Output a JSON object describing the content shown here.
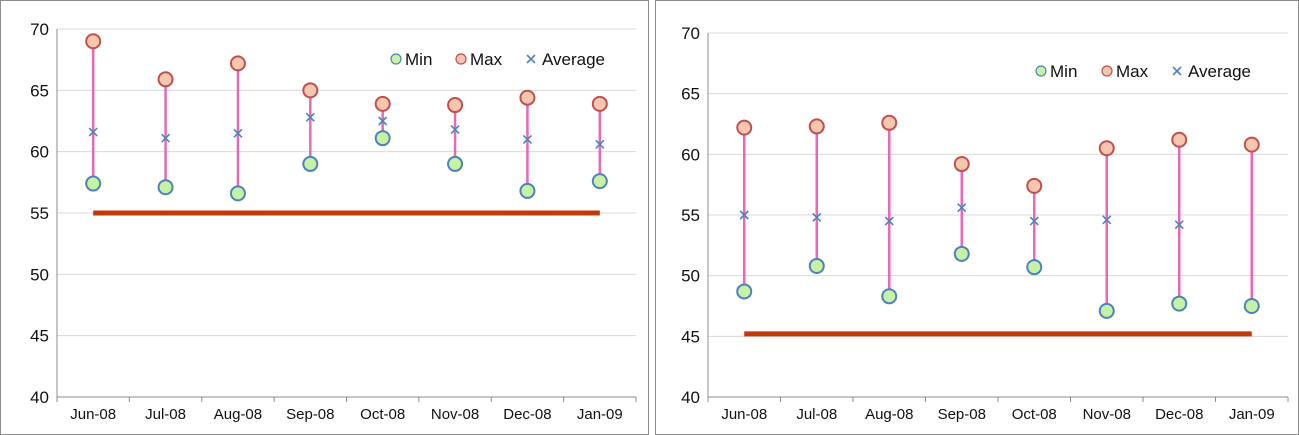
{
  "colors": {
    "min_fill": "#c6f2a6",
    "min_stroke": "#4f81bd",
    "max_fill": "#f6c7b0",
    "max_stroke": "#c0504d",
    "average_marker": "#4f81bd",
    "range_line": "#e868b8",
    "threshold_line": "#c0390b",
    "grid": "#d9d9d9",
    "axis": "#8c8c8c"
  },
  "chart_data": [
    {
      "type": "line",
      "title": "",
      "xlabel": "",
      "ylabel": "",
      "categories": [
        "Jun-08",
        "Jul-08",
        "Aug-08",
        "Sep-08",
        "Oct-08",
        "Nov-08",
        "Dec-08",
        "Jan-09"
      ],
      "ylim": [
        40,
        70
      ],
      "yticks": [
        40,
        45,
        50,
        55,
        60,
        65,
        70
      ],
      "grid": true,
      "legend_position": "top-right",
      "series": [
        {
          "name": "Min",
          "values": [
            57.4,
            57.1,
            56.6,
            59.0,
            61.1,
            59.0,
            56.8,
            57.6
          ]
        },
        {
          "name": "Max",
          "values": [
            69.0,
            65.9,
            67.2,
            65.0,
            63.9,
            63.8,
            64.4,
            63.9
          ]
        },
        {
          "name": "Average",
          "values": [
            61.6,
            61.1,
            61.5,
            62.8,
            62.5,
            61.8,
            61.0,
            60.6
          ]
        }
      ],
      "threshold": 55
    },
    {
      "type": "line",
      "title": "",
      "xlabel": "",
      "ylabel": "",
      "categories": [
        "Jun-08",
        "Jul-08",
        "Aug-08",
        "Sep-08",
        "Oct-08",
        "Nov-08",
        "Dec-08",
        "Jan-09"
      ],
      "ylim": [
        40,
        70
      ],
      "yticks": [
        40,
        45,
        50,
        55,
        60,
        65,
        70
      ],
      "grid": true,
      "legend_position": "top-right",
      "series": [
        {
          "name": "Min",
          "values": [
            48.7,
            50.8,
            48.3,
            51.8,
            50.7,
            47.1,
            47.7,
            47.5
          ]
        },
        {
          "name": "Max",
          "values": [
            62.2,
            62.3,
            62.6,
            59.2,
            57.4,
            60.5,
            61.2,
            60.8
          ]
        },
        {
          "name": "Average",
          "values": [
            55.0,
            54.8,
            54.5,
            55.6,
            54.5,
            54.6,
            54.2,
            60.6
          ]
        }
      ],
      "threshold": 45.2
    }
  ]
}
